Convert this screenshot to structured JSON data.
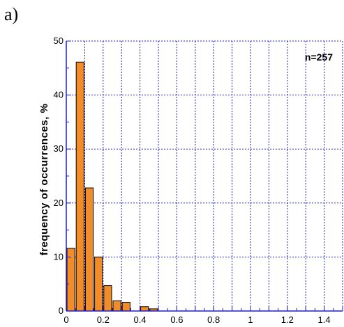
{
  "panel_label": "a)",
  "chart_data": {
    "type": "bar",
    "title": "",
    "xlabel": "",
    "ylabel": "frequency of occurrences, %",
    "annotation": "n=257",
    "legend": "none",
    "grid": true,
    "xlim": [
      0,
      1.5
    ],
    "ylim": [
      0,
      50
    ],
    "x_ticks": [
      0,
      0.2,
      0.4,
      0.6,
      0.8,
      1,
      1.2,
      1.4
    ],
    "x_tick_labels": [
      "0",
      "0.2",
      "0.4",
      "0.6",
      "0.8",
      "1",
      "1.2",
      "1.4"
    ],
    "y_ticks": [
      0,
      10,
      20,
      30,
      40,
      50
    ],
    "y_tick_labels": [
      "0",
      "10",
      "20",
      "30",
      "40",
      "50"
    ],
    "bin_width": 0.05,
    "bins": [
      {
        "x0": 0.0,
        "value": 11.6
      },
      {
        "x0": 0.05,
        "value": 46.1
      },
      {
        "x0": 0.1,
        "value": 22.8
      },
      {
        "x0": 0.15,
        "value": 10.0
      },
      {
        "x0": 0.2,
        "value": 4.7
      },
      {
        "x0": 0.25,
        "value": 1.9
      },
      {
        "x0": 0.3,
        "value": 1.6
      },
      {
        "x0": 0.4,
        "value": 0.8
      },
      {
        "x0": 0.45,
        "value": 0.4
      }
    ],
    "colors": {
      "bar_fill": "#F28C28",
      "bar_stroke": "#000000",
      "grid": "#1F1FC8",
      "axis": "#1F1FC8"
    }
  }
}
